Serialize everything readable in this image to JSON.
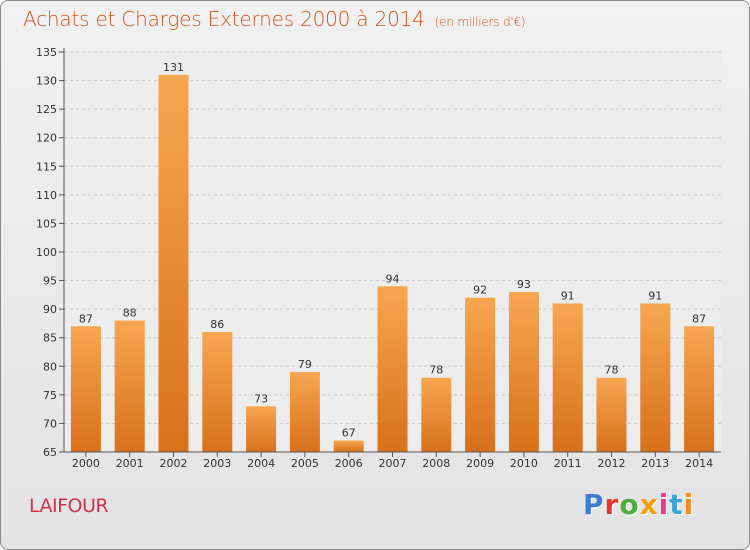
{
  "header": {
    "title": "Achats et Charges Externes 2000 à 2014",
    "subtitle": "(en milliers d'€)"
  },
  "footer": {
    "commune": "LAIFOUR",
    "brand": "Proxiti",
    "brand_colors": [
      "#3a7fd0",
      "#e8352b",
      "#4fae3a",
      "#f2a007",
      "#e83e8c",
      "#3aa5d8",
      "#f28c1e"
    ]
  },
  "colors": {
    "bar_light": "#f7a650",
    "bar_dark": "#d9701a",
    "axis": "#555555",
    "grid": "#c8c8c8",
    "text": "#333333"
  },
  "chart_data": {
    "type": "bar",
    "categories": [
      "2000",
      "2001",
      "2002",
      "2003",
      "2004",
      "2005",
      "2006",
      "2007",
      "2008",
      "2009",
      "2010",
      "2011",
      "2012",
      "2013",
      "2014"
    ],
    "values": [
      87,
      88,
      131,
      86,
      73,
      79,
      67,
      94,
      78,
      92,
      93,
      91,
      78,
      91,
      87
    ],
    "ylim": [
      65,
      135
    ],
    "yticks": [
      65,
      70,
      75,
      80,
      85,
      90,
      95,
      100,
      105,
      110,
      115,
      120,
      125,
      130,
      135
    ],
    "grid": true,
    "data_labels": true
  }
}
